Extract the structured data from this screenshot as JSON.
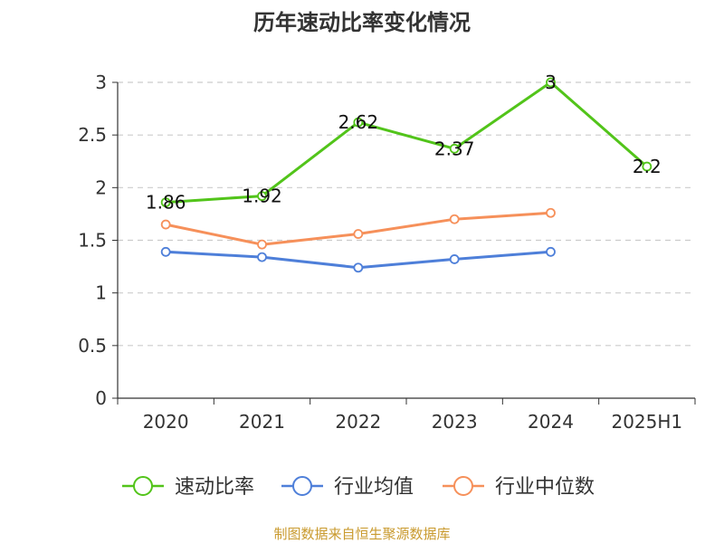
{
  "chart_data": {
    "type": "line",
    "title": "历年速动比率变化情况",
    "categories": [
      "2020",
      "2021",
      "2022",
      "2023",
      "2024",
      "2025H1"
    ],
    "ylim": [
      0,
      3
    ],
    "yticks": [
      "0",
      "0.5",
      "1",
      "1.5",
      "2",
      "2.5",
      "3"
    ],
    "grid": true,
    "legend_position": "bottom",
    "series": [
      {
        "name": "速动比率",
        "color": "#52c41a",
        "values": [
          1.86,
          1.92,
          2.62,
          2.37,
          3,
          2.2
        ],
        "labels": [
          "1.86",
          "1.92",
          "2.62",
          "2.37",
          "3",
          "2.2"
        ]
      },
      {
        "name": "行业均值",
        "color": "#4e7fd9",
        "values": [
          1.39,
          1.34,
          1.24,
          1.32,
          1.39,
          null
        ],
        "labels": []
      },
      {
        "name": "行业中位数",
        "color": "#f6905a",
        "values": [
          1.65,
          1.46,
          1.56,
          1.7,
          1.76,
          null
        ],
        "labels": []
      }
    ]
  },
  "footer": {
    "source": "制图数据来自恒生聚源数据库"
  }
}
